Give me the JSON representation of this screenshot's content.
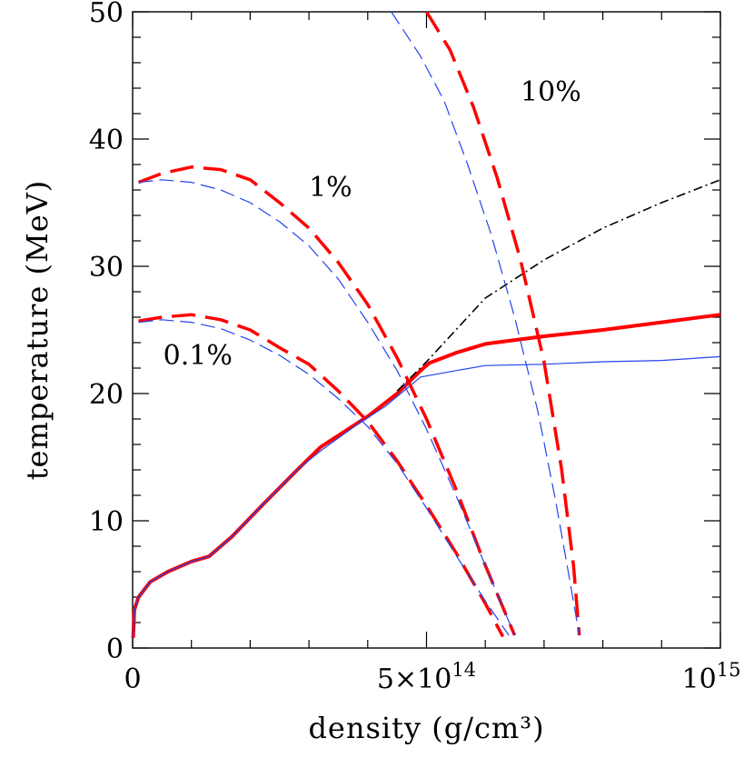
{
  "chart_data": {
    "type": "line",
    "title": "",
    "xlabel": "density (g/cm³)",
    "ylabel": "temperature (MeV)",
    "xlim": [
      0,
      1000000000000000.0
    ],
    "ylim": [
      0,
      50
    ],
    "x_ticks": [
      {
        "value": 500000000000000.0,
        "label_base": "5×10",
        "label_exp": "14"
      },
      {
        "value": 1000000000000000.0,
        "label_base": "10",
        "label_exp": "15"
      }
    ],
    "x_origin_label": "0",
    "y_ticks": [
      {
        "value": 0,
        "label": "0"
      },
      {
        "value": 10,
        "label": "10"
      },
      {
        "value": 20,
        "label": "20"
      },
      {
        "value": 30,
        "label": "30"
      },
      {
        "value": 40,
        "label": "40"
      },
      {
        "value": 50,
        "label": "50"
      }
    ],
    "annotations": [
      {
        "text": "10%",
        "x": 660000000000000.0,
        "y": 43.0
      },
      {
        "text": "1%",
        "x": 300000000000000.0,
        "y": 35.5
      },
      {
        "text": "0.1%",
        "x": 52000000000000.0,
        "y": 22.3
      }
    ],
    "series": [
      {
        "name": "red-solid",
        "color": "#ff0000",
        "style": "solid",
        "width": 4,
        "points": [
          [
            1000000000000.0,
            0.8
          ],
          [
            3000000000000.0,
            3.0
          ],
          [
            10000000000000.0,
            4.0
          ],
          [
            30000000000000.0,
            5.2
          ],
          [
            60000000000000.0,
            6.0
          ],
          [
            100000000000000.0,
            6.8
          ],
          [
            130000000000000.0,
            7.2
          ],
          [
            170000000000000.0,
            8.8
          ],
          [
            220000000000000.0,
            11.2
          ],
          [
            280000000000000.0,
            14.0
          ],
          [
            320000000000000.0,
            15.8
          ],
          [
            400000000000000.0,
            18.2
          ],
          [
            450000000000000.0,
            20.0
          ],
          [
            490000000000000.0,
            21.8
          ],
          [
            505000000000000.0,
            22.4
          ],
          [
            550000000000000.0,
            23.2
          ],
          [
            600000000000000.0,
            23.9
          ],
          [
            700000000000000.0,
            24.5
          ],
          [
            800000000000000.0,
            25.0
          ],
          [
            900000000000000.0,
            25.6
          ],
          [
            1000000000000000.0,
            26.2
          ]
        ]
      },
      {
        "name": "blue-solid",
        "color": "#2244ee",
        "style": "solid",
        "width": 1.2,
        "points": [
          [
            1000000000000.0,
            0.8
          ],
          [
            3000000000000.0,
            3.0
          ],
          [
            10000000000000.0,
            4.0
          ],
          [
            30000000000000.0,
            5.2
          ],
          [
            60000000000000.0,
            6.0
          ],
          [
            100000000000000.0,
            6.8
          ],
          [
            130000000000000.0,
            7.2
          ],
          [
            170000000000000.0,
            8.8
          ],
          [
            220000000000000.0,
            11.2
          ],
          [
            280000000000000.0,
            14.0
          ],
          [
            320000000000000.0,
            15.5
          ],
          [
            380000000000000.0,
            17.5
          ],
          [
            430000000000000.0,
            19.0
          ],
          [
            490000000000000.0,
            21.3
          ],
          [
            550000000000000.0,
            21.8
          ],
          [
            600000000000000.0,
            22.2
          ],
          [
            700000000000000.0,
            22.3
          ],
          [
            800000000000000.0,
            22.5
          ],
          [
            900000000000000.0,
            22.6
          ],
          [
            1000000000000000.0,
            22.9
          ]
        ]
      },
      {
        "name": "black-dashdot",
        "color": "#000000",
        "style": "dashdot",
        "width": 1.6,
        "points": [
          [
            450000000000000.0,
            20.2
          ],
          [
            500000000000000.0,
            22.5
          ],
          [
            600000000000000.0,
            27.5
          ],
          [
            700000000000000.0,
            30.5
          ],
          [
            800000000000000.0,
            33.0
          ],
          [
            900000000000000.0,
            35.0
          ],
          [
            1000000000000000.0,
            36.8
          ]
        ]
      },
      {
        "name": "red-dashed-0.1%",
        "color": "#ff0000",
        "style": "dashed",
        "width": 3.5,
        "points": [
          [
            10000000000000.0,
            25.7
          ],
          [
            50000000000000.0,
            26.0
          ],
          [
            100000000000000.0,
            26.2
          ],
          [
            150000000000000.0,
            25.8
          ],
          [
            200000000000000.0,
            25.0
          ],
          [
            250000000000000.0,
            23.6
          ],
          [
            300000000000000.0,
            22.3
          ],
          [
            350000000000000.0,
            20.2
          ],
          [
            400000000000000.0,
            17.8
          ],
          [
            450000000000000.0,
            14.7
          ],
          [
            500000000000000.0,
            11.2
          ],
          [
            550000000000000.0,
            7.5
          ],
          [
            600000000000000.0,
            3.5
          ],
          [
            630000000000000.0,
            0.9
          ]
        ]
      },
      {
        "name": "blue-dashed-0.1%",
        "color": "#2244ee",
        "style": "dashed",
        "width": 1.2,
        "points": [
          [
            10000000000000.0,
            25.6
          ],
          [
            50000000000000.0,
            25.8
          ],
          [
            100000000000000.0,
            25.6
          ],
          [
            150000000000000.0,
            25.1
          ],
          [
            200000000000000.0,
            24.2
          ],
          [
            250000000000000.0,
            23.0
          ],
          [
            300000000000000.0,
            21.5
          ],
          [
            350000000000000.0,
            19.6
          ],
          [
            400000000000000.0,
            17.4
          ],
          [
            450000000000000.0,
            14.5
          ],
          [
            500000000000000.0,
            11.0
          ],
          [
            550000000000000.0,
            7.3
          ],
          [
            600000000000000.0,
            3.7
          ],
          [
            640000000000000.0,
            1.0
          ]
        ]
      },
      {
        "name": "red-dashed-1%",
        "color": "#ff0000",
        "style": "dashed",
        "width": 3.5,
        "points": [
          [
            10000000000000.0,
            36.6
          ],
          [
            50000000000000.0,
            37.3
          ],
          [
            100000000000000.0,
            37.8
          ],
          [
            150000000000000.0,
            37.6
          ],
          [
            200000000000000.0,
            36.8
          ],
          [
            250000000000000.0,
            35.0
          ],
          [
            300000000000000.0,
            33.0
          ],
          [
            350000000000000.0,
            30.3
          ],
          [
            400000000000000.0,
            27.0
          ],
          [
            450000000000000.0,
            22.8
          ],
          [
            500000000000000.0,
            18.0
          ],
          [
            550000000000000.0,
            12.5
          ],
          [
            600000000000000.0,
            6.5
          ],
          [
            650000000000000.0,
            1.0
          ]
        ]
      },
      {
        "name": "blue-dashed-1%",
        "color": "#2244ee",
        "style": "dashed",
        "width": 1.2,
        "points": [
          [
            10000000000000.0,
            36.6
          ],
          [
            50000000000000.0,
            36.8
          ],
          [
            100000000000000.0,
            36.6
          ],
          [
            150000000000000.0,
            36.0
          ],
          [
            200000000000000.0,
            35.0
          ],
          [
            250000000000000.0,
            33.5
          ],
          [
            300000000000000.0,
            31.6
          ],
          [
            350000000000000.0,
            29.0
          ],
          [
            400000000000000.0,
            25.6
          ],
          [
            450000000000000.0,
            21.8
          ],
          [
            500000000000000.0,
            17.2
          ],
          [
            550000000000000.0,
            12.0
          ],
          [
            600000000000000.0,
            6.5
          ],
          [
            650000000000000.0,
            1.0
          ]
        ]
      },
      {
        "name": "red-dashed-10%",
        "color": "#ff0000",
        "style": "dashed",
        "width": 3.5,
        "points": [
          [
            500000000000000.0,
            50.0
          ],
          [
            540000000000000.0,
            47.0
          ],
          [
            580000000000000.0,
            42.5
          ],
          [
            620000000000000.0,
            37.0
          ],
          [
            660000000000000.0,
            30.5
          ],
          [
            700000000000000.0,
            22.5
          ],
          [
            730000000000000.0,
            14.0
          ],
          [
            750000000000000.0,
            6.5
          ],
          [
            760000000000000.0,
            1.0
          ]
        ]
      },
      {
        "name": "blue-dashed-10%",
        "color": "#2244ee",
        "style": "dashed",
        "width": 1.2,
        "points": [
          [
            440000000000000.0,
            50.0
          ],
          [
            490000000000000.0,
            46.5
          ],
          [
            530000000000000.0,
            43.0
          ],
          [
            570000000000000.0,
            38.0
          ],
          [
            610000000000000.0,
            32.5
          ],
          [
            650000000000000.0,
            26.0
          ],
          [
            690000000000000.0,
            18.5
          ],
          [
            720000000000000.0,
            11.5
          ],
          [
            745000000000000.0,
            5.0
          ],
          [
            760000000000000.0,
            1.0
          ]
        ]
      }
    ]
  }
}
